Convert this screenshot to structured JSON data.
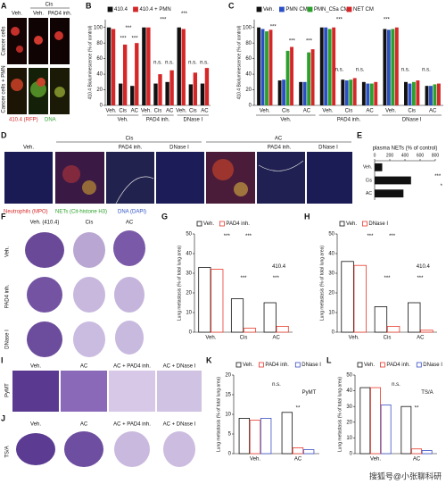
{
  "panels": {
    "A": {
      "letter": "A",
      "top": "Cis",
      "columns": [
        "Veh.",
        "Veh.",
        "PAD4 inh."
      ],
      "rows": [
        "Cancer cells",
        "Cancer cells + PMN"
      ],
      "legend": [
        "410.4 (RFP)",
        "DNA"
      ]
    },
    "B": {
      "letter": "B"
    },
    "C": {
      "letter": "C"
    },
    "D": {
      "letter": "D",
      "groups": [
        "Cis",
        "AC"
      ],
      "columns": [
        "Veh.",
        "PAD4 inh.",
        "DNase I",
        "PAD4 inh.",
        "DNase I"
      ],
      "legend": [
        "Neutrophils (MPO)",
        "NETs (Cit-histone H3)",
        "DNA (DAPI)"
      ]
    },
    "E": {
      "letter": "E"
    },
    "F": {
      "letter": "F",
      "columns": [
        "Veh. (410.4)",
        "Cis",
        "AC"
      ],
      "rows": [
        "Veh.",
        "PAD4 inh.",
        "DNase I"
      ]
    },
    "G": {
      "letter": "G"
    },
    "H": {
      "letter": "H"
    },
    "I": {
      "letter": "I",
      "columns": [
        "Veh.",
        "AC",
        "AC + PAD4 inh.",
        "AC + DNase I"
      ],
      "row": "PyMT"
    },
    "J": {
      "letter": "J",
      "columns": [
        "Veh.",
        "AC",
        "AC + PAD4 inh.",
        "AC + DNase I"
      ],
      "row": "TS/A"
    },
    "K": {
      "letter": "K"
    },
    "L": {
      "letter": "L"
    },
    "watermark": "搜狐号@小张聊科研"
  },
  "chart_data": [
    {
      "type": "bar",
      "bar_style": "filled",
      "ylabel": "410.4 Bioluminescence (% of control)",
      "categories": [
        "Veh.",
        "Cis",
        "AC",
        "Veh.",
        "Cis",
        "AC",
        "Veh.",
        "Cis",
        "AC"
      ],
      "groups": [
        "Veh.",
        "PAD4 inh.",
        "DNase I"
      ],
      "series": [
        {
          "name": "410.4",
          "color": "#111111",
          "values": [
            100,
            28,
            25,
            100,
            28,
            30,
            100,
            27,
            28
          ]
        },
        {
          "name": "410.4 + PMN",
          "color": "#d62728",
          "values": [
            98,
            78,
            80,
            100,
            40,
            45,
            98,
            42,
            48
          ]
        }
      ],
      "ylim": [
        0,
        110
      ],
      "yticks": [
        0,
        20,
        40,
        60,
        80,
        100
      ],
      "annotations": [
        "***",
        "***",
        "***",
        "n.s.",
        "n.s.",
        "n.s.",
        "n.s.",
        "***",
        "***"
      ]
    },
    {
      "type": "bar",
      "bar_style": "filled",
      "ylabel": "410.4 Bioluminescence (% of control)",
      "categories": [
        "Veh.",
        "Cis",
        "AC",
        "Veh.",
        "Cis",
        "AC",
        "Veh.",
        "Cis",
        "AC"
      ],
      "groups": [
        "Veh.",
        "PAD4 inh.",
        "DNase I"
      ],
      "series": [
        {
          "name": "Veh.",
          "color": "#111111",
          "values": [
            100,
            32,
            30,
            100,
            33,
            30,
            98,
            30,
            25
          ]
        },
        {
          "name": "PMN CM",
          "color": "#2b4fc4",
          "values": [
            98,
            33,
            30,
            100,
            32,
            28,
            97,
            28,
            25
          ]
        },
        {
          "name": "PMN_C5a CM",
          "color": "#2ca02c",
          "values": [
            95,
            70,
            68,
            98,
            33,
            28,
            98,
            30,
            27
          ]
        },
        {
          "name": "NET CM",
          "color": "#d62728",
          "values": [
            97,
            75,
            72,
            100,
            35,
            30,
            100,
            32,
            28
          ]
        }
      ],
      "ylim": [
        0,
        110
      ],
      "yticks": [
        0,
        20,
        40,
        60,
        80,
        100
      ],
      "annotations": [
        "***",
        "***",
        "***",
        "***",
        "***",
        "n.s.",
        "n.s.",
        "n.s.",
        "n.s."
      ]
    },
    {
      "type": "barh",
      "xlabel": "plasma NETs (% of control)",
      "categories": [
        "Veh.",
        "Cis",
        "AC"
      ],
      "values": [
        100,
        480,
        380
      ],
      "color": "#111111",
      "xlim": [
        0,
        800
      ],
      "xticks": [
        0,
        200,
        400,
        600,
        800
      ],
      "annotations": [
        "***",
        "*"
      ]
    },
    {
      "type": "bar",
      "bar_style": "outline",
      "ylabel": "Lung metastasis (% of total lung area)",
      "categories": [
        "Veh.",
        "Cis",
        "AC"
      ],
      "series": [
        {
          "name": "Veh.",
          "color": "#111111",
          "values": [
            33,
            17,
            15
          ]
        },
        {
          "name": "PAD4 inh.",
          "color": "#e8392b",
          "values": [
            32,
            2,
            3
          ]
        }
      ],
      "ylim": [
        0,
        50
      ],
      "yticks": [
        0,
        10,
        20,
        30,
        40,
        50
      ],
      "annotations": [
        "***",
        "***",
        "***",
        "***",
        "410.4"
      ]
    },
    {
      "type": "bar",
      "bar_style": "outline",
      "ylabel": "Lung metastasis (% of total lung area)",
      "categories": [
        "Veh.",
        "Cis",
        "AC"
      ],
      "series": [
        {
          "name": "Veh.",
          "color": "#111111",
          "values": [
            36,
            13,
            15
          ]
        },
        {
          "name": "DNase I",
          "color": "#e8392b",
          "values": [
            34,
            3,
            1
          ]
        }
      ],
      "ylim": [
        0,
        50
      ],
      "yticks": [
        0,
        10,
        20,
        30,
        40,
        50
      ],
      "annotations": [
        "***",
        "***",
        "***",
        "***",
        "410.4"
      ]
    },
    {
      "type": "bar",
      "bar_style": "outline",
      "ylabel": "Lung metastasis (% of total lung area)",
      "categories": [
        "Veh.",
        "AC"
      ],
      "series": [
        {
          "name": "Veh.",
          "color": "#111111",
          "values": [
            9,
            10.5
          ]
        },
        {
          "name": "PAD4 inh.",
          "color": "#e8392b",
          "values": [
            8.5,
            1.5
          ]
        },
        {
          "name": "DNase I",
          "color": "#3a4fc4",
          "values": [
            9,
            1
          ]
        }
      ],
      "ylim": [
        0,
        20
      ],
      "yticks": [
        0,
        5,
        10,
        15,
        20
      ],
      "annotations": [
        "n.s.",
        "**",
        "PyMT"
      ]
    },
    {
      "type": "bar",
      "bar_style": "outline",
      "ylabel": "Lung metastasis (% of total lung area)",
      "categories": [
        "Veh.",
        "AC"
      ],
      "series": [
        {
          "name": "Veh.",
          "color": "#111111",
          "values": [
            42,
            30
          ]
        },
        {
          "name": "PAD4 inh.",
          "color": "#e8392b",
          "values": [
            42,
            3
          ]
        },
        {
          "name": "DNase I",
          "color": "#3a4fc4",
          "values": [
            31,
            2
          ]
        }
      ],
      "ylim": [
        0,
        50
      ],
      "yticks": [
        0,
        10,
        20,
        30,
        40,
        50
      ],
      "annotations": [
        "n.s.",
        "**",
        "TS/A"
      ]
    }
  ]
}
